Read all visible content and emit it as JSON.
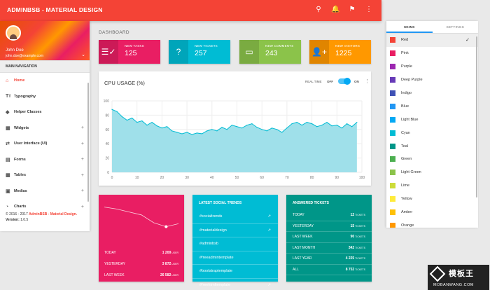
{
  "app": {
    "title": "ADMINBSB - MATERIAL DESIGN"
  },
  "topbar": {
    "icons": [
      {
        "name": "search-icon",
        "glyph": "⚲",
        "badge": ""
      },
      {
        "name": "notifications-icon",
        "glyph": "🔔",
        "badge": "7"
      },
      {
        "name": "flag-icon",
        "glyph": "⚑",
        "badge": "9"
      },
      {
        "name": "more-vert-icon",
        "glyph": "⋮",
        "badge": ""
      }
    ]
  },
  "user": {
    "name": "John Doe",
    "email": "john.doe@example.com",
    "caret": "⌄"
  },
  "sidebar": {
    "header": "MAIN NAVIGATION",
    "items": [
      {
        "label": "Home",
        "icon": "⌂",
        "icon_name": "home-icon",
        "plus": "",
        "active": true
      },
      {
        "label": "Typography",
        "icon": "Tт",
        "icon_name": "text-fields-icon",
        "plus": ""
      },
      {
        "label": "Helper Classes",
        "icon": "◆",
        "icon_name": "layers-icon",
        "plus": ""
      },
      {
        "label": "Widgets",
        "icon": "▦",
        "icon_name": "widgets-icon",
        "plus": "+"
      },
      {
        "label": "User Interface (UI)",
        "icon": "⇄",
        "icon_name": "swap-icon",
        "plus": "+"
      },
      {
        "label": "Forms",
        "icon": "▤",
        "icon_name": "assignment-icon",
        "plus": "+"
      },
      {
        "label": "Tables",
        "icon": "▦",
        "icon_name": "table-icon",
        "plus": "+"
      },
      {
        "label": "Medias",
        "icon": "▣",
        "icon_name": "media-icon",
        "plus": "+"
      },
      {
        "label": "Charts",
        "icon": "◔",
        "icon_name": "pie-chart-icon",
        "plus": "+"
      }
    ],
    "footer": {
      "copyright": "© 2016 - 2017",
      "brand": "AdminBSB - Material Design.",
      "version_label": "Version:",
      "version": "1.0.5"
    }
  },
  "page": {
    "title": "DASHBOARD"
  },
  "info_boxes": [
    {
      "label": "NEW TASKS",
      "value": "125",
      "icon": "☰✓",
      "icon_name": "playlist-check-icon",
      "color": "#e91e63"
    },
    {
      "label": "NEW TICKETS",
      "value": "257",
      "icon": "?",
      "icon_name": "help-icon",
      "color": "#00bcd4"
    },
    {
      "label": "NEW COMMENTS",
      "value": "243",
      "icon": "▭",
      "icon_name": "forum-icon",
      "color": "#8bc34a"
    },
    {
      "label": "NEW VISITORS",
      "value": "1225",
      "icon": "👤+",
      "icon_name": "person-add-icon",
      "color": "#ff9800"
    }
  ],
  "cpu": {
    "title": "CPU USAGE (%)",
    "realtime_label": "REAL TIME",
    "off": "OFF",
    "on": "ON",
    "more": "⋮",
    "toggle_on": true
  },
  "chart_data": {
    "type": "area",
    "title": "CPU USAGE (%)",
    "xlim": [
      0,
      100
    ],
    "ylim": [
      0,
      100
    ],
    "x_ticks": [
      0,
      10,
      20,
      30,
      40,
      50,
      60,
      70,
      80,
      90,
      100
    ],
    "y_ticks": [
      0,
      20,
      40,
      60,
      80,
      100
    ],
    "grid": true,
    "color": "#00bcd4",
    "x": [
      0,
      2,
      4,
      6,
      8,
      10,
      12,
      14,
      16,
      18,
      20,
      22,
      24,
      26,
      28,
      30,
      32,
      34,
      36,
      38,
      40,
      42,
      44,
      46,
      48,
      50,
      52,
      54,
      56,
      58,
      60,
      62,
      64,
      66,
      68,
      70,
      72,
      74,
      76,
      78,
      80,
      82,
      84,
      86,
      88,
      90,
      92,
      94,
      96,
      98
    ],
    "values": [
      88,
      85,
      78,
      73,
      76,
      70,
      72,
      66,
      70,
      65,
      62,
      64,
      58,
      56,
      54,
      56,
      53,
      55,
      54,
      58,
      60,
      58,
      63,
      60,
      66,
      64,
      62,
      66,
      68,
      63,
      60,
      58,
      62,
      60,
      56,
      62,
      68,
      70,
      66,
      70,
      68,
      64,
      66,
      70,
      65,
      66,
      62,
      68,
      64,
      70
    ]
  },
  "social_card": {
    "color": "#e91e63",
    "stats": [
      {
        "label": "TODAY",
        "value": "1 200",
        "unit": "USER"
      },
      {
        "label": "YESTERDAY",
        "value": "3 872",
        "unit": "USER"
      },
      {
        "label": "LAST WEEK",
        "value": "26 582",
        "unit": "USER"
      }
    ],
    "sparkline": [
      62,
      58,
      52,
      46,
      30,
      22,
      28
    ]
  },
  "trends_card": {
    "color": "#00bcd4",
    "title": "LATEST SOCIAL TRENDS",
    "items": [
      {
        "tag": "#socialtrends",
        "trend": "↗"
      },
      {
        "tag": "#materialdesign",
        "trend": "↗"
      },
      {
        "tag": "#adminbsb",
        "trend": ""
      },
      {
        "tag": "#freeadmintemplate",
        "trend": ""
      },
      {
        "tag": "#bootstraptemplate",
        "trend": ""
      },
      {
        "tag": "#freehtmltemplate",
        "trend": "↗"
      }
    ]
  },
  "tickets_card": {
    "color": "#009688",
    "title": "ANSWERED TICKETS",
    "rows": [
      {
        "label": "TODAY",
        "value": "12",
        "unit": "TICKETS"
      },
      {
        "label": "YESTERDAY",
        "value": "15",
        "unit": "TICKETS"
      },
      {
        "label": "LAST WEEK",
        "value": "90",
        "unit": "TICKETS"
      },
      {
        "label": "LAST MONTH",
        "value": "342",
        "unit": "TICKETS"
      },
      {
        "label": "LAST YEAR",
        "value": "4 225",
        "unit": "TICKETS"
      },
      {
        "label": "ALL",
        "value": "8 752",
        "unit": "TICKETS"
      }
    ]
  },
  "right_sidebar": {
    "tabs": [
      "SKINS",
      "SETTINGS"
    ],
    "active_tab": 0,
    "selected_skin": 0,
    "check": "✓",
    "skins": [
      {
        "name": "Red",
        "color": "#f44336"
      },
      {
        "name": "Pink",
        "color": "#e91e63"
      },
      {
        "name": "Purple",
        "color": "#9c27b0"
      },
      {
        "name": "Deep Purple",
        "color": "#673ab7"
      },
      {
        "name": "Indigo",
        "color": "#3f51b5"
      },
      {
        "name": "Blue",
        "color": "#2196f3"
      },
      {
        "name": "Light Blue",
        "color": "#03a9f4"
      },
      {
        "name": "Cyan",
        "color": "#00bcd4"
      },
      {
        "name": "Teal",
        "color": "#009688"
      },
      {
        "name": "Green",
        "color": "#4caf50"
      },
      {
        "name": "Light Green",
        "color": "#8bc34a"
      },
      {
        "name": "Lime",
        "color": "#cddc39"
      },
      {
        "name": "Yellow",
        "color": "#ffeb3b"
      },
      {
        "name": "Amber",
        "color": "#ffc107"
      },
      {
        "name": "Orange",
        "color": "#ff9800"
      }
    ]
  },
  "watermark": {
    "cn": "模板王",
    "url": "MOBANWANG.COM"
  }
}
